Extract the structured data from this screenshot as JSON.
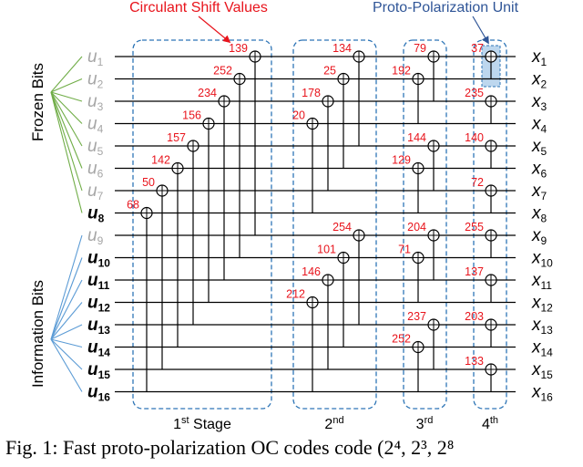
{
  "top_labels": {
    "circulant_shift_values": "Circulant Shift Values",
    "proto_polarization_unit": "Proto-Polarization Unit"
  },
  "side_labels": {
    "frozen_bits": "Frozen Bits",
    "information_bits": "Information Bits"
  },
  "inputs": [
    {
      "base": "u",
      "sub": "1",
      "frozen": true
    },
    {
      "base": "u",
      "sub": "2",
      "frozen": true
    },
    {
      "base": "u",
      "sub": "3",
      "frozen": true
    },
    {
      "base": "u",
      "sub": "4",
      "frozen": true
    },
    {
      "base": "u",
      "sub": "5",
      "frozen": true
    },
    {
      "base": "u",
      "sub": "6",
      "frozen": true
    },
    {
      "base": "u",
      "sub": "7",
      "frozen": true
    },
    {
      "base": "u",
      "sub": "8",
      "frozen": false
    },
    {
      "base": "u",
      "sub": "9",
      "frozen": true
    },
    {
      "base": "u",
      "sub": "10",
      "frozen": false
    },
    {
      "base": "u",
      "sub": "11",
      "frozen": false
    },
    {
      "base": "u",
      "sub": "12",
      "frozen": false
    },
    {
      "base": "u",
      "sub": "13",
      "frozen": false
    },
    {
      "base": "u",
      "sub": "14",
      "frozen": false
    },
    {
      "base": "u",
      "sub": "15",
      "frozen": false
    },
    {
      "base": "u",
      "sub": "16",
      "frozen": false
    }
  ],
  "outputs": [
    {
      "base": "x",
      "sub": "1"
    },
    {
      "base": "x",
      "sub": "2"
    },
    {
      "base": "x",
      "sub": "3"
    },
    {
      "base": "x",
      "sub": "4"
    },
    {
      "base": "x",
      "sub": "5"
    },
    {
      "base": "x",
      "sub": "6"
    },
    {
      "base": "x",
      "sub": "7"
    },
    {
      "base": "x",
      "sub": "8"
    },
    {
      "base": "x",
      "sub": "9"
    },
    {
      "base": "x",
      "sub": "10"
    },
    {
      "base": "x",
      "sub": "11"
    },
    {
      "base": "x",
      "sub": "12"
    },
    {
      "base": "x",
      "sub": "13"
    },
    {
      "base": "x",
      "sub": "14"
    },
    {
      "base": "x",
      "sub": "15"
    },
    {
      "base": "x",
      "sub": "16"
    }
  ],
  "stages": [
    {
      "num": "1",
      "sup": "st",
      "word": "Stage"
    },
    {
      "num": "2",
      "sup": "nd",
      "word": ""
    },
    {
      "num": "3",
      "sup": "rd",
      "word": ""
    },
    {
      "num": "4",
      "sup": "th",
      "word": ""
    }
  ],
  "xor_gates": [
    {
      "stage": 1,
      "slot": 7,
      "row": 1,
      "to": 9,
      "shift": "139"
    },
    {
      "stage": 1,
      "slot": 6,
      "row": 2,
      "to": 10,
      "shift": "252"
    },
    {
      "stage": 1,
      "slot": 5,
      "row": 3,
      "to": 11,
      "shift": "234"
    },
    {
      "stage": 1,
      "slot": 4,
      "row": 4,
      "to": 12,
      "shift": "156"
    },
    {
      "stage": 1,
      "slot": 3,
      "row": 5,
      "to": 13,
      "shift": "157"
    },
    {
      "stage": 1,
      "slot": 2,
      "row": 6,
      "to": 14,
      "shift": "142"
    },
    {
      "stage": 1,
      "slot": 1,
      "row": 7,
      "to": 15,
      "shift": "50"
    },
    {
      "stage": 1,
      "slot": 0,
      "row": 8,
      "to": 16,
      "shift": "68"
    },
    {
      "stage": 2,
      "slot": 3,
      "row": 1,
      "to": 5,
      "shift": "134"
    },
    {
      "stage": 2,
      "slot": 2,
      "row": 2,
      "to": 6,
      "shift": "25"
    },
    {
      "stage": 2,
      "slot": 1,
      "row": 3,
      "to": 7,
      "shift": "178"
    },
    {
      "stage": 2,
      "slot": 0,
      "row": 4,
      "to": 8,
      "shift": "20"
    },
    {
      "stage": 2,
      "slot": 3,
      "row": 9,
      "to": 13,
      "shift": "254"
    },
    {
      "stage": 2,
      "slot": 2,
      "row": 10,
      "to": 14,
      "shift": "101"
    },
    {
      "stage": 2,
      "slot": 1,
      "row": 11,
      "to": 15,
      "shift": "146"
    },
    {
      "stage": 2,
      "slot": 0,
      "row": 12,
      "to": 16,
      "shift": "212"
    },
    {
      "stage": 3,
      "slot": 1,
      "row": 1,
      "to": 3,
      "shift": "79"
    },
    {
      "stage": 3,
      "slot": 0,
      "row": 2,
      "to": 4,
      "shift": "192"
    },
    {
      "stage": 3,
      "slot": 1,
      "row": 5,
      "to": 7,
      "shift": "144"
    },
    {
      "stage": 3,
      "slot": 0,
      "row": 6,
      "to": 8,
      "shift": "129"
    },
    {
      "stage": 3,
      "slot": 1,
      "row": 9,
      "to": 11,
      "shift": "204"
    },
    {
      "stage": 3,
      "slot": 0,
      "row": 10,
      "to": 12,
      "shift": "71"
    },
    {
      "stage": 3,
      "slot": 1,
      "row": 13,
      "to": 15,
      "shift": "237"
    },
    {
      "stage": 3,
      "slot": 0,
      "row": 14,
      "to": 16,
      "shift": "252"
    },
    {
      "stage": 4,
      "slot": 0,
      "row": 1,
      "to": 2,
      "shift": "37"
    },
    {
      "stage": 4,
      "slot": 0,
      "row": 3,
      "to": 4,
      "shift": "235"
    },
    {
      "stage": 4,
      "slot": 0,
      "row": 5,
      "to": 6,
      "shift": "140"
    },
    {
      "stage": 4,
      "slot": 0,
      "row": 7,
      "to": 8,
      "shift": "72"
    },
    {
      "stage": 4,
      "slot": 0,
      "row": 9,
      "to": 10,
      "shift": "255"
    },
    {
      "stage": 4,
      "slot": 0,
      "row": 11,
      "to": 12,
      "shift": "137"
    },
    {
      "stage": 4,
      "slot": 0,
      "row": 13,
      "to": 14,
      "shift": "203"
    },
    {
      "stage": 4,
      "slot": 0,
      "row": 15,
      "to": 16,
      "shift": "133"
    }
  ],
  "colors": {
    "shift_value": "#e8141c",
    "proto_label": "#2f5597",
    "stage_box": "#2e75b6",
    "frozen_fan": "#70ad47",
    "info_fan": "#5b9bd5",
    "frozen_text": "#a6a6a6",
    "info_text": "#000000",
    "proto_fill": "#bdd7ee"
  },
  "caption": "Fig. 1:  Fast proto-polarization OC codes code (2⁴, 2³, 2⁸"
}
